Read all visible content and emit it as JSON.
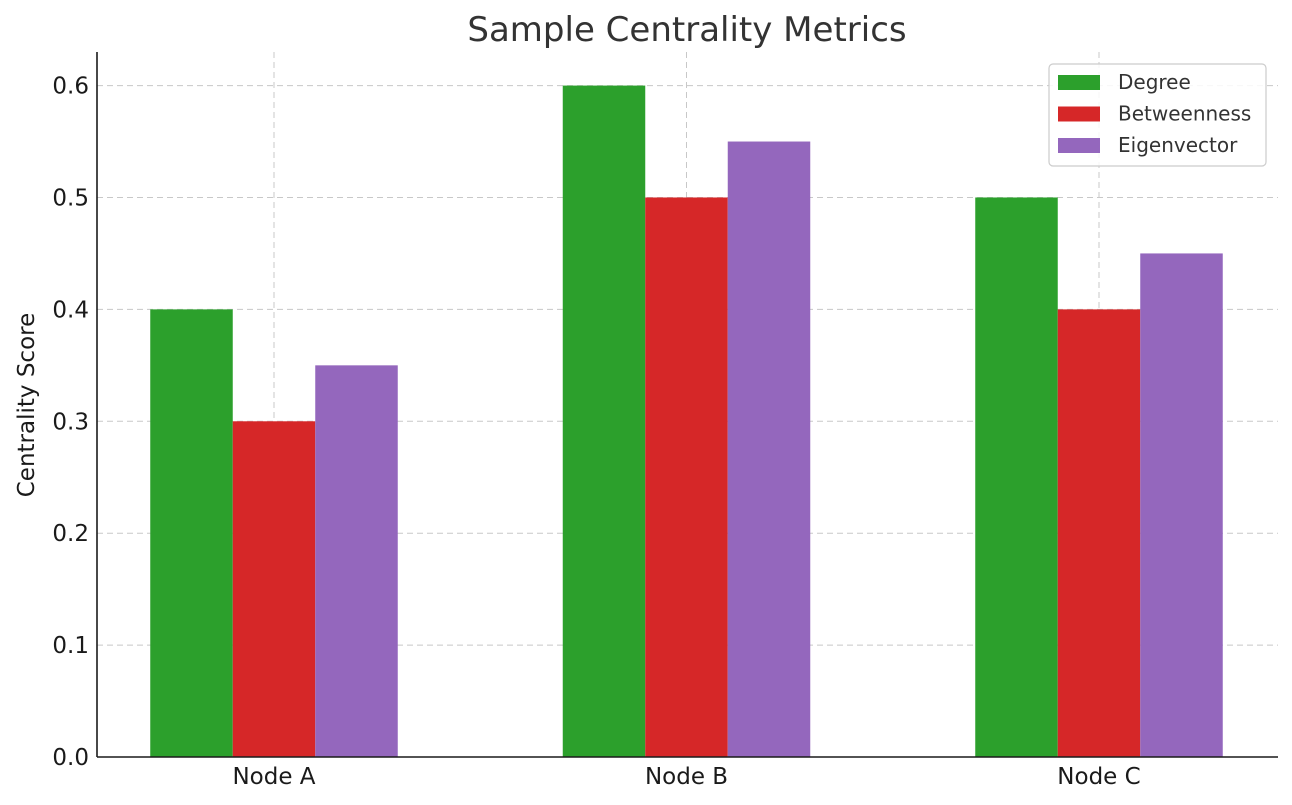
{
  "chart_data": {
    "type": "bar",
    "title": "Sample Centrality Metrics",
    "xlabel": "",
    "ylabel": "Centrality Score",
    "categories": [
      "Node A",
      "Node B",
      "Node C"
    ],
    "series": [
      {
        "name": "Degree",
        "values": [
          0.4,
          0.6,
          0.5
        ],
        "color": "#2ca02c"
      },
      {
        "name": "Betweenness",
        "values": [
          0.3,
          0.5,
          0.4
        ],
        "color": "#d62728"
      },
      {
        "name": "Eigenvector",
        "values": [
          0.35,
          0.55,
          0.45
        ],
        "color": "#9467bd"
      }
    ],
    "ylim": [
      0,
      0.63
    ],
    "yticks": [
      "0.0",
      "0.1",
      "0.2",
      "0.3",
      "0.4",
      "0.5",
      "0.6"
    ],
    "grid": true,
    "legend_position": "top-right"
  }
}
